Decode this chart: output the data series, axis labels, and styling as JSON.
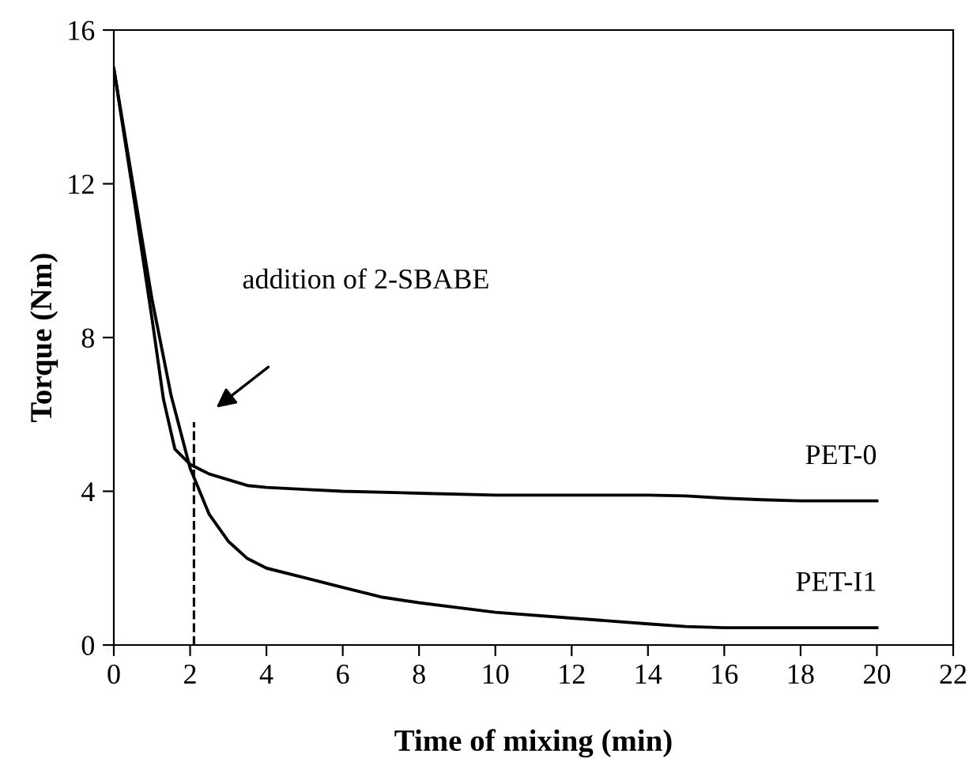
{
  "chart_data": {
    "type": "line",
    "xlabel": "Time of mixing (min)",
    "ylabel": "Torque (Nm)",
    "xlim": [
      0,
      22
    ],
    "xticks": [
      0,
      2,
      4,
      6,
      8,
      10,
      12,
      14,
      16,
      18,
      20,
      22
    ],
    "ylim": [
      0,
      16
    ],
    "yticks": [
      0,
      4,
      8,
      12,
      16
    ],
    "grid": false,
    "legend": false,
    "marker": "none",
    "series": [
      {
        "name": "PET-0",
        "color": "#000000",
        "x": [
          0,
          0.5,
          1,
          1.3,
          1.6,
          2,
          2.5,
          3,
          3.5,
          4,
          5,
          6,
          8,
          10,
          12,
          14,
          15,
          16,
          17,
          18,
          20
        ],
        "values": [
          15,
          11.8,
          8.5,
          6.4,
          5.1,
          4.7,
          4.45,
          4.3,
          4.15,
          4.1,
          4.05,
          4.0,
          3.95,
          3.9,
          3.9,
          3.9,
          3.88,
          3.82,
          3.78,
          3.75,
          3.75
        ]
      },
      {
        "name": "PET-I1",
        "color": "#000000",
        "x": [
          0,
          0.5,
          1,
          1.5,
          2,
          2.5,
          3,
          3.5,
          4,
          5,
          6,
          7,
          8,
          10,
          12,
          14,
          15,
          16,
          18,
          20
        ],
        "values": [
          15,
          12,
          9,
          6.5,
          4.6,
          3.4,
          2.7,
          2.25,
          2.0,
          1.75,
          1.5,
          1.25,
          1.1,
          0.85,
          0.7,
          0.55,
          0.48,
          0.45,
          0.45,
          0.45
        ]
      },
      {
        "color": "#000000",
        "line_style": "dashed",
        "x": [
          2.1,
          2.1
        ],
        "values": [
          0,
          5.8
        ]
      }
    ],
    "annotations": [
      "addition of 2-SBABE"
    ]
  }
}
